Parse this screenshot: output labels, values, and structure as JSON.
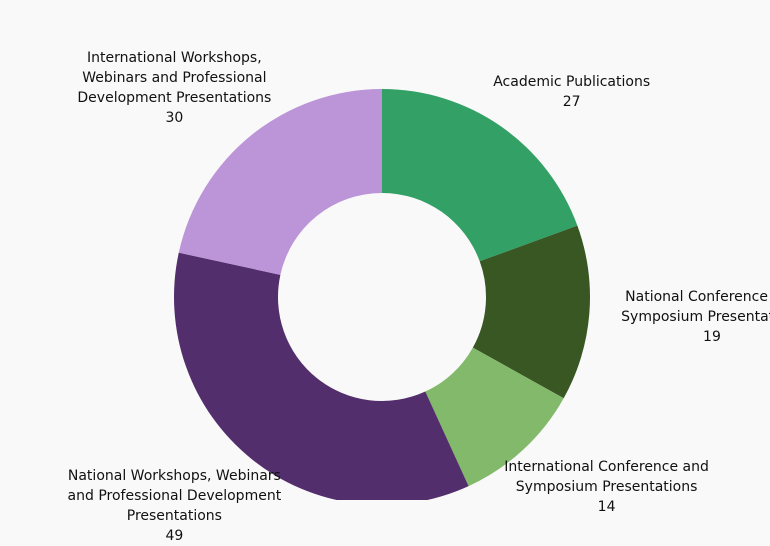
{
  "chart_data": {
    "type": "donut",
    "categories": [
      "Academic Publications",
      "National Conference and Symposium Presentations",
      "International Conference and Symposium Presentations",
      "National Workshops, Webinars and Professional Development Presentations",
      "International Workshops, Webinars and Professional Development Presentations"
    ],
    "values": [
      27,
      19,
      14,
      49,
      30
    ],
    "colors": [
      "#33a065",
      "#385723",
      "#83b96a",
      "#532e6c",
      "#bc94d8"
    ]
  }
}
